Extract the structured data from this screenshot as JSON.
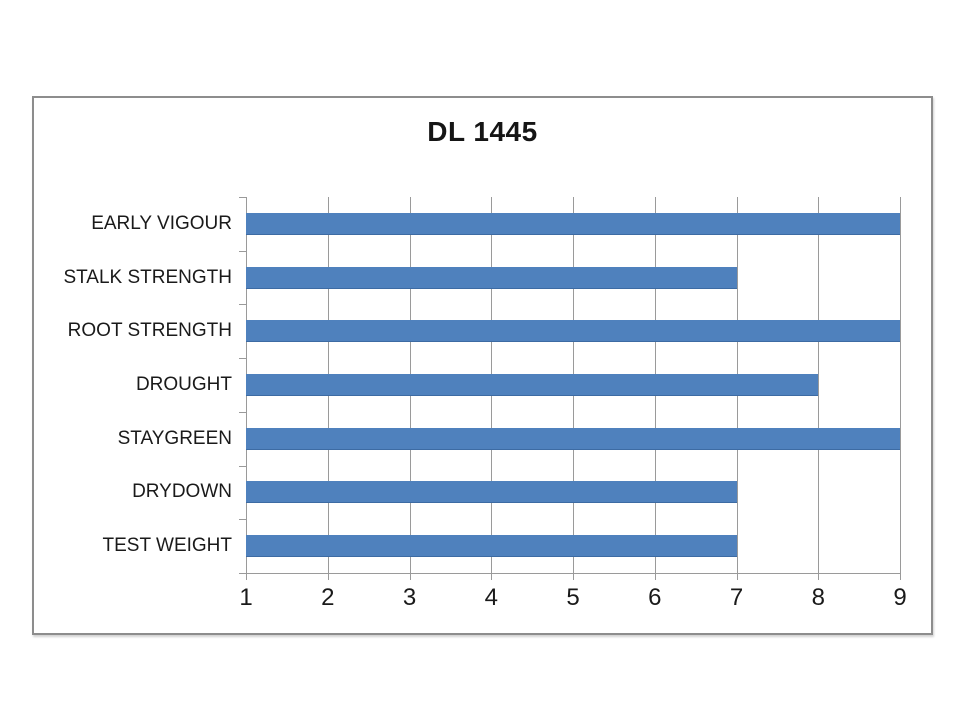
{
  "chart_data": {
    "type": "bar",
    "orientation": "horizontal",
    "title": "DL 1445",
    "categories": [
      "EARLY VIGOUR",
      "STALK STRENGTH",
      "ROOT STRENGTH",
      "DROUGHT",
      "STAYGREEN",
      "DRYDOWN",
      "TEST WEIGHT"
    ],
    "values": [
      9,
      7,
      9,
      8,
      9,
      7,
      7
    ],
    "xlim": [
      1,
      9
    ],
    "x_ticks": [
      1,
      2,
      3,
      4,
      5,
      6,
      7,
      8,
      9
    ],
    "grid": true,
    "legend": "none",
    "colors": {
      "bar": "#4f81bd",
      "bar_edge": "#3d6ba3",
      "gridline": "#9a9a9a",
      "axis": "#8f8f8f",
      "text": "#1a1a1a",
      "frame_border": "#8d8d8d",
      "background": "#ffffff"
    }
  }
}
